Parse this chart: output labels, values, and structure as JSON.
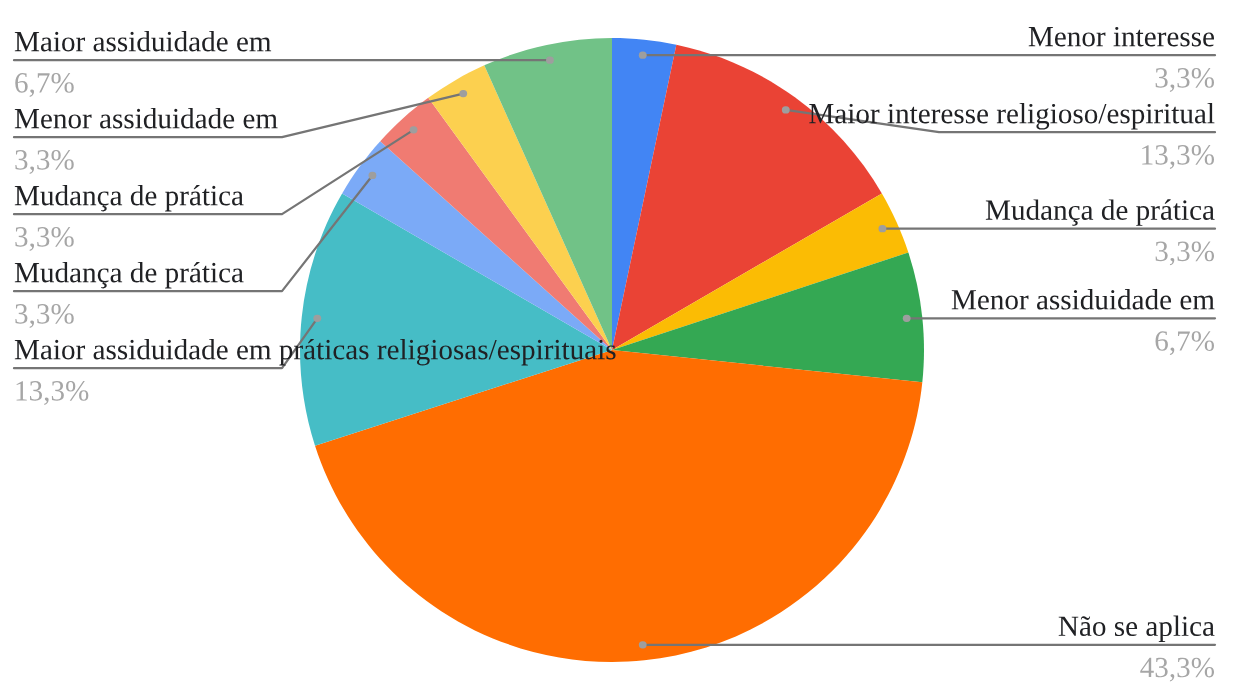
{
  "chart_data": {
    "type": "pie",
    "categories": [
      "Menor interesse",
      "Maior interesse religioso/espiritual",
      "Mudança de prática",
      "Menor assiduidade em",
      "Não se aplica",
      "Maior assiduidade em práticas religiosas/espirituais",
      "Mudança de prática",
      "Mudança de prática",
      "Menor assiduidade em",
      "Maior assiduidade em"
    ],
    "values": [
      3.3,
      13.3,
      3.3,
      6.7,
      43.3,
      13.3,
      3.3,
      3.3,
      3.3,
      6.7
    ],
    "value_labels": [
      "3,3%",
      "13,3%",
      "3,3%",
      "6,7%",
      "43,3%",
      "13,3%",
      "3,3%",
      "3,3%",
      "3,3%",
      "6,7%"
    ],
    "colors": [
      "#4285f4",
      "#ea4335",
      "#fbbc04",
      "#34a853",
      "#ff6d01",
      "#46bdc6",
      "#7baaf7",
      "#f07b72",
      "#fcd04f",
      "#71c287"
    ]
  }
}
